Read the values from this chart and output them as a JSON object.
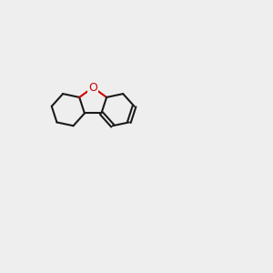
{
  "bg_color": "#eeeeee",
  "bond_color": "#1a1a1a",
  "O_color": "#cc0000",
  "N_color": "#0000cc",
  "NH_color": "#3399aa",
  "figsize": [
    3.0,
    3.0
  ],
  "dpi": 100
}
